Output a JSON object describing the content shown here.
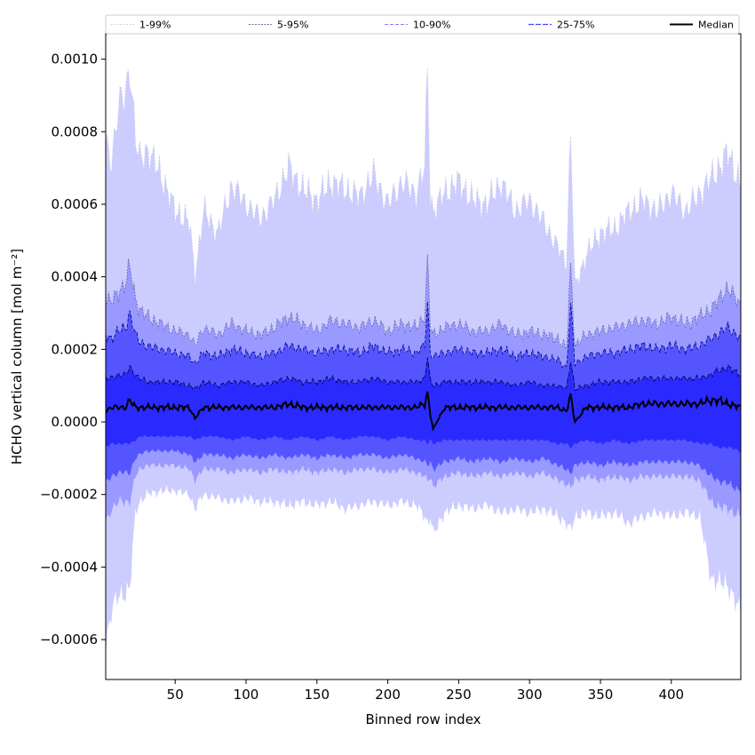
{
  "chart_data": {
    "type": "area",
    "title": "",
    "xlabel": "Binned row index",
    "ylabel": "HCHO vertical column [mol m⁻²]",
    "xlim": [
      1,
      449
    ],
    "ylim": [
      -0.00071,
      0.00107
    ],
    "xticks": [
      50,
      100,
      150,
      200,
      250,
      300,
      350,
      400
    ],
    "yticks": [
      -0.0006,
      -0.0004,
      -0.0002,
      0.0,
      0.0002,
      0.0004,
      0.0006,
      0.0008,
      0.001
    ],
    "ytick_labels": [
      "−0.0006",
      "−0.0004",
      "−0.0002",
      "0.0000",
      "0.0002",
      "0.0004",
      "0.0006",
      "0.0008",
      "0.0010"
    ],
    "legend_position": "top, spanning full width",
    "grid": false,
    "x": [
      1,
      5,
      10,
      15,
      18,
      22,
      25,
      30,
      40,
      50,
      60,
      64,
      70,
      80,
      90,
      100,
      110,
      120,
      130,
      140,
      150,
      160,
      170,
      180,
      190,
      200,
      210,
      220,
      226,
      228,
      230,
      232,
      240,
      250,
      260,
      270,
      280,
      290,
      300,
      310,
      320,
      326,
      329,
      332,
      340,
      350,
      360,
      370,
      380,
      390,
      400,
      410,
      420,
      428,
      432,
      440,
      449
    ],
    "bands": [
      {
        "name": "1-99%",
        "color": "#ccccff",
        "line_color": "#c4c4e8",
        "dash": "1.5 2",
        "lower": [
          -0.00062,
          -0.00052,
          -0.00048,
          -0.00047,
          -0.00046,
          -0.00025,
          -0.00022,
          -0.0002,
          -0.00019,
          -0.00019,
          -0.0002,
          -0.00024,
          -0.0002,
          -0.00021,
          -0.00022,
          -0.00021,
          -0.00022,
          -0.00022,
          -0.00023,
          -0.00022,
          -0.00023,
          -0.00022,
          -0.00024,
          -0.00023,
          -0.00022,
          -0.00023,
          -0.00022,
          -0.00023,
          -0.00026,
          -0.00028,
          -0.00026,
          -0.00031,
          -0.00025,
          -0.00023,
          -0.00024,
          -0.00023,
          -0.00025,
          -0.00024,
          -0.00025,
          -0.00024,
          -0.00026,
          -0.00028,
          -0.0003,
          -0.00026,
          -0.00025,
          -0.00026,
          -0.00025,
          -0.00028,
          -0.00026,
          -0.00025,
          -0.00026,
          -0.00025,
          -0.00026,
          -0.00043,
          -0.00044,
          -0.00045,
          -0.00053
        ],
        "upper": [
          0.00076,
          0.00072,
          0.00087,
          0.0009,
          0.00099,
          0.00078,
          0.00072,
          0.00075,
          0.00068,
          0.00058,
          0.00055,
          0.0004,
          0.00058,
          0.00052,
          0.00065,
          0.0006,
          0.00056,
          0.00061,
          0.0007,
          0.00064,
          0.00061,
          0.00066,
          0.00064,
          0.00062,
          0.00068,
          0.0006,
          0.00066,
          0.00063,
          0.0007,
          0.00098,
          0.00062,
          0.00058,
          0.00063,
          0.00066,
          0.00061,
          0.0006,
          0.00066,
          0.00058,
          0.00061,
          0.00055,
          0.00048,
          0.00044,
          0.0008,
          0.00037,
          0.00046,
          0.00052,
          0.00053,
          0.00058,
          0.00061,
          0.00058,
          0.00063,
          0.00058,
          0.00063,
          0.00067,
          0.00069,
          0.00074,
          0.00065
        ]
      },
      {
        "name": "5-95%",
        "color": "#9999ff",
        "line_color": "#6666aa",
        "dash": "2 1.5",
        "lower": [
          -0.00028,
          -0.00024,
          -0.00022,
          -0.00022,
          -0.00022,
          -0.00015,
          -0.00013,
          -0.00012,
          -0.00012,
          -0.00012,
          -0.00013,
          -0.00016,
          -0.00013,
          -0.00013,
          -0.00014,
          -0.00013,
          -0.00014,
          -0.00013,
          -0.00014,
          -0.00013,
          -0.00014,
          -0.00013,
          -0.00014,
          -0.00013,
          -0.00013,
          -0.00014,
          -0.00013,
          -0.00014,
          -0.00015,
          -0.00016,
          -0.00015,
          -0.00018,
          -0.00015,
          -0.00014,
          -0.00015,
          -0.00014,
          -0.00015,
          -0.00014,
          -0.00015,
          -0.00014,
          -0.00016,
          -0.00017,
          -0.00018,
          -0.00016,
          -0.00015,
          -0.00016,
          -0.00015,
          -0.00016,
          -0.00015,
          -0.00015,
          -0.00015,
          -0.00015,
          -0.00016,
          -0.00022,
          -0.00023,
          -0.00024,
          -0.00026
        ],
        "upper": [
          0.00034,
          0.00033,
          0.00036,
          0.00038,
          0.00043,
          0.00034,
          0.00031,
          0.00029,
          0.00027,
          0.00025,
          0.00024,
          0.00021,
          0.00026,
          0.00024,
          0.00027,
          0.00025,
          0.00024,
          0.00026,
          0.00029,
          0.00027,
          0.00025,
          0.00028,
          0.00027,
          0.00026,
          0.00028,
          0.00025,
          0.00027,
          0.00026,
          0.00029,
          0.00045,
          0.00026,
          0.00024,
          0.00026,
          0.00027,
          0.00025,
          0.00025,
          0.00027,
          0.00024,
          0.00025,
          0.00024,
          0.00023,
          0.0002,
          0.00043,
          0.00021,
          0.00024,
          0.00025,
          0.00026,
          0.00027,
          0.00028,
          0.00027,
          0.00029,
          0.00027,
          0.00029,
          0.00031,
          0.00033,
          0.00037,
          0.00032
        ]
      },
      {
        "name": "10-90%",
        "color": "#5555ff",
        "line_color": "#00008b",
        "dash": "4 2",
        "lower": [
          -0.00017,
          -0.00015,
          -0.00014,
          -0.00014,
          -0.00014,
          -0.0001,
          -9e-05,
          -8e-05,
          -8e-05,
          -8e-05,
          -9e-05,
          -0.00011,
          -9e-05,
          -9e-05,
          -0.0001,
          -9e-05,
          -0.0001,
          -9e-05,
          -0.0001,
          -9e-05,
          -0.0001,
          -9e-05,
          -0.0001,
          -9e-05,
          -9e-05,
          -0.0001,
          -9e-05,
          -0.0001,
          -0.00011,
          -0.00012,
          -0.00011,
          -0.00013,
          -0.00011,
          -0.0001,
          -0.00011,
          -0.0001,
          -0.00011,
          -0.0001,
          -0.00011,
          -0.0001,
          -0.00012,
          -0.00013,
          -0.00014,
          -0.00012,
          -0.00011,
          -0.00012,
          -0.00011,
          -0.00012,
          -0.00011,
          -0.00011,
          -0.00011,
          -0.00011,
          -0.00012,
          -0.00015,
          -0.00016,
          -0.00017,
          -0.00019
        ],
        "upper": [
          0.00024,
          0.00023,
          0.00025,
          0.00026,
          0.0003,
          0.00024,
          0.00022,
          0.00021,
          0.0002,
          0.00019,
          0.00018,
          0.00016,
          0.00019,
          0.00018,
          0.0002,
          0.00019,
          0.00018,
          0.00019,
          0.00021,
          0.0002,
          0.00019,
          0.0002,
          0.0002,
          0.00019,
          0.00021,
          0.00019,
          0.0002,
          0.00019,
          0.00021,
          0.00033,
          0.00019,
          0.00018,
          0.00019,
          0.0002,
          0.00019,
          0.00019,
          0.0002,
          0.00018,
          0.00019,
          0.00018,
          0.00017,
          0.00015,
          0.00032,
          0.00016,
          0.00018,
          0.00019,
          0.00019,
          0.0002,
          0.00021,
          0.0002,
          0.00021,
          0.0002,
          0.00021,
          0.00023,
          0.00024,
          0.00026,
          0.00023
        ]
      },
      {
        "name": "25-75%",
        "color": "#2a2aff",
        "line_color": "#000044",
        "dash": "6 2",
        "lower": [
          -7e-05,
          -6e-05,
          -6e-05,
          -6e-05,
          -6e-05,
          -5e-05,
          -4e-05,
          -4e-05,
          -4e-05,
          -4e-05,
          -4e-05,
          -5e-05,
          -4e-05,
          -4e-05,
          -5e-05,
          -4e-05,
          -5e-05,
          -4e-05,
          -5e-05,
          -4e-05,
          -5e-05,
          -4e-05,
          -5e-05,
          -4e-05,
          -4e-05,
          -5e-05,
          -4e-05,
          -5e-05,
          -5e-05,
          -6e-05,
          -5e-05,
          -6e-05,
          -5e-05,
          -5e-05,
          -5e-05,
          -5e-05,
          -5e-05,
          -5e-05,
          -5e-05,
          -5e-05,
          -6e-05,
          -6e-05,
          -7e-05,
          -6e-05,
          -5e-05,
          -6e-05,
          -5e-05,
          -6e-05,
          -5e-05,
          -5e-05,
          -5e-05,
          -5e-05,
          -6e-05,
          -6e-05,
          -7e-05,
          -7e-05,
          -8e-05
        ],
        "upper": [
          0.00012,
          0.00012,
          0.00013,
          0.00013,
          0.00015,
          0.00013,
          0.00012,
          0.00011,
          0.00011,
          0.00011,
          0.0001,
          9e-05,
          0.00011,
          0.0001,
          0.00011,
          0.00011,
          0.0001,
          0.00011,
          0.00012,
          0.00011,
          0.00011,
          0.00012,
          0.00011,
          0.00011,
          0.00012,
          0.00011,
          0.00011,
          0.00011,
          0.00012,
          0.00018,
          0.00011,
          0.0001,
          0.00011,
          0.00011,
          0.00011,
          0.00011,
          0.00011,
          0.0001,
          0.00011,
          0.0001,
          0.0001,
          9e-05,
          0.00017,
          9e-05,
          0.0001,
          0.00011,
          0.00011,
          0.00011,
          0.00012,
          0.00012,
          0.00012,
          0.00012,
          0.00012,
          0.00013,
          0.00014,
          0.00015,
          0.00013
        ]
      }
    ],
    "series": [
      {
        "name": "Median",
        "color": "#000000",
        "values": [
          3e-05,
          4e-05,
          4e-05,
          4e-05,
          6e-05,
          4e-05,
          4e-05,
          4e-05,
          4e-05,
          4e-05,
          4e-05,
          1e-05,
          4e-05,
          4e-05,
          4e-05,
          4e-05,
          4e-05,
          4e-05,
          5e-05,
          4e-05,
          4e-05,
          4e-05,
          4e-05,
          4e-05,
          4e-05,
          4e-05,
          4e-05,
          4e-05,
          5e-05,
          8e-05,
          2e-05,
          -2e-05,
          4e-05,
          4e-05,
          4e-05,
          4e-05,
          4e-05,
          4e-05,
          4e-05,
          4e-05,
          4e-05,
          3e-05,
          7e-05,
          0.0,
          4e-05,
          4e-05,
          4e-05,
          4e-05,
          5e-05,
          5e-05,
          5e-05,
          5e-05,
          5e-05,
          6e-05,
          6e-05,
          5e-05,
          4e-05
        ]
      }
    ],
    "legend": [
      {
        "label": "1-99%",
        "color": "#c4c4e8",
        "dash": "1.5 2",
        "width": 1
      },
      {
        "label": "5-95%",
        "color": "#6666aa",
        "dash": "2 1.5",
        "width": 1
      },
      {
        "label": "10-90%",
        "color": "#8080ff",
        "dash": "4 2",
        "width": 1
      },
      {
        "label": "25-75%",
        "color": "#4444ff",
        "dash": "6 2",
        "width": 1.2
      },
      {
        "label": "Median",
        "color": "#000000",
        "dash": "",
        "width": 2
      }
    ]
  }
}
